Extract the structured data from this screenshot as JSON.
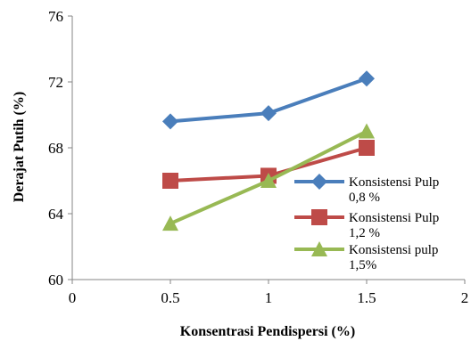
{
  "chart_data": {
    "type": "line",
    "xlabel": "Konsentrasi Pendispersi (%)",
    "ylabel": "Derajat Putih (%)",
    "xlim": [
      0,
      2
    ],
    "ylim": [
      60,
      76
    ],
    "x_ticks": [
      "0",
      "0.5",
      "1",
      "1.5",
      "2"
    ],
    "y_ticks": [
      "60",
      "64",
      "68",
      "72",
      "76"
    ],
    "x": [
      0.5,
      1,
      1.5
    ],
    "grid": false,
    "legend_position": "right",
    "series": [
      {
        "name_line1": "Konsistensi Pulp",
        "name_line2": "0,8 %",
        "marker": "diamond",
        "color": "#4a7ebb",
        "values": [
          69.6,
          70.1,
          72.2
        ]
      },
      {
        "name_line1": "Konsistensi Pulp",
        "name_line2": "1,2 %",
        "marker": "square",
        "color": "#be4b48",
        "values": [
          66.0,
          66.3,
          68.0
        ]
      },
      {
        "name_line1": "Konsistensi pulp",
        "name_line2": "1,5%",
        "marker": "triangle",
        "color": "#98b954",
        "values": [
          63.4,
          66.0,
          69.0
        ]
      }
    ]
  }
}
